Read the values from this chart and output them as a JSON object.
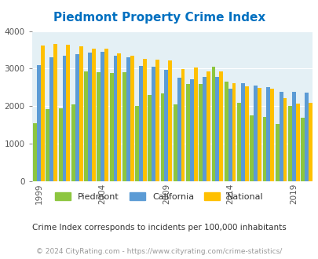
{
  "title": "Piedmont Property Crime Index",
  "subtitle": "Crime Index corresponds to incidents per 100,000 inhabitants",
  "copyright": "© 2024 CityRating.com - https://www.cityrating.com/crime-statistics/",
  "years": [
    1999,
    2000,
    2001,
    2002,
    2003,
    2004,
    2005,
    2006,
    2007,
    2008,
    2009,
    2010,
    2011,
    2012,
    2013,
    2014,
    2015,
    2016,
    2017,
    2018,
    2019,
    2020
  ],
  "piedmont": [
    1550,
    1920,
    1950,
    2050,
    2920,
    2900,
    2880,
    2900,
    2000,
    2300,
    2350,
    2040,
    2600,
    2590,
    3060,
    2650,
    2090,
    1750,
    1720,
    1520,
    2010,
    1700
  ],
  "california": [
    3100,
    3300,
    3350,
    3380,
    3430,
    3450,
    3350,
    3300,
    3070,
    3050,
    2960,
    2750,
    2720,
    2780,
    2780,
    2470,
    2610,
    2560,
    2510,
    2390,
    2380,
    2360
  ],
  "national": [
    3620,
    3660,
    3630,
    3590,
    3530,
    3530,
    3400,
    3350,
    3260,
    3230,
    3220,
    2980,
    3040,
    2930,
    2930,
    2610,
    2530,
    2490,
    2460,
    2210,
    2070,
    2100
  ],
  "colors": {
    "piedmont": "#8dc63f",
    "california": "#5b9bd5",
    "national": "#ffc000"
  },
  "bg_color": "#e4f0f5",
  "title_color": "#0070c0",
  "subtitle_color": "#333333",
  "copyright_color": "#999999",
  "ylim": [
    0,
    4000
  ],
  "yticks": [
    0,
    1000,
    2000,
    3000,
    4000
  ],
  "tick_label_years": [
    1999,
    2004,
    2009,
    2014,
    2019
  ],
  "legend_labels": [
    "Piedmont",
    "California",
    "National"
  ]
}
